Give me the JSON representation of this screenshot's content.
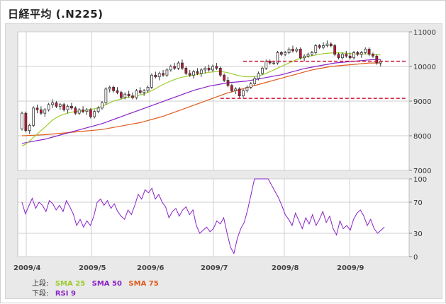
{
  "title": "日経平均 (.N225)",
  "legend": {
    "upper_label": "上段:",
    "lower_label": "下段:",
    "sma25": "SMA 25",
    "sma50": "SMA 50",
    "sma75": "SMA 75",
    "rsi9": "RSI 9"
  },
  "colors": {
    "sma25": "#9ccc2c",
    "sma50": "#8a22c8",
    "sma75": "#e05a1a",
    "rsi": "#8a22c8",
    "up": "#ffffff",
    "down": "#cc1133",
    "support": "#cc1133",
    "grid": "#cfcfcf"
  },
  "chart_data": [
    {
      "type": "candlestick",
      "x_tick_labels": [
        "2009/4",
        "2009/5",
        "2009/6",
        "2009/7",
        "2009/8",
        "2009/9"
      ],
      "y_ticks": [
        7000,
        8000,
        9000,
        10000,
        11000
      ],
      "ylim": [
        7000,
        11000
      ],
      "ohlc": [
        [
          0,
          8200,
          8700,
          8150,
          8650
        ],
        [
          1,
          8650,
          8700,
          8100,
          8150
        ],
        [
          2,
          8150,
          8350,
          8050,
          8300
        ],
        [
          3,
          8300,
          8850,
          8250,
          8800
        ],
        [
          4,
          8800,
          8900,
          8650,
          8750
        ],
        [
          5,
          8750,
          8850,
          8600,
          8650
        ],
        [
          6,
          8650,
          8800,
          8550,
          8750
        ],
        [
          7,
          8750,
          8950,
          8700,
          8900
        ],
        [
          8,
          8900,
          9050,
          8800,
          8950
        ],
        [
          9,
          8950,
          9000,
          8800,
          8850
        ],
        [
          10,
          8850,
          8950,
          8750,
          8900
        ],
        [
          11,
          8900,
          8950,
          8700,
          8750
        ],
        [
          12,
          8750,
          8900,
          8650,
          8850
        ],
        [
          13,
          8850,
          8950,
          8750,
          8800
        ],
        [
          14,
          8800,
          8850,
          8600,
          8650
        ],
        [
          15,
          8650,
          8800,
          8600,
          8750
        ],
        [
          16,
          8750,
          8850,
          8650,
          8700
        ],
        [
          17,
          8700,
          8800,
          8600,
          8750
        ],
        [
          18,
          8750,
          8800,
          8500,
          8550
        ],
        [
          19,
          8550,
          8750,
          8500,
          8700
        ],
        [
          20,
          8700,
          8850,
          8650,
          8800
        ],
        [
          21,
          8800,
          9000,
          8750,
          8950
        ],
        [
          22,
          8950,
          9400,
          8900,
          9350
        ],
        [
          23,
          9350,
          9450,
          9250,
          9400
        ],
        [
          24,
          9400,
          9450,
          9250,
          9300
        ],
        [
          25,
          9300,
          9400,
          9200,
          9250
        ],
        [
          26,
          9250,
          9300,
          9050,
          9100
        ],
        [
          27,
          9100,
          9250,
          9050,
          9200
        ],
        [
          28,
          9200,
          9300,
          9100,
          9150
        ],
        [
          29,
          9150,
          9250,
          9050,
          9100
        ],
        [
          30,
          9100,
          9350,
          9050,
          9300
        ],
        [
          31,
          9300,
          9400,
          9200,
          9250
        ],
        [
          32,
          9250,
          9350,
          9150,
          9300
        ],
        [
          33,
          9300,
          9450,
          9250,
          9400
        ],
        [
          34,
          9400,
          9800,
          9350,
          9750
        ],
        [
          35,
          9750,
          9850,
          9650,
          9700
        ],
        [
          36,
          9700,
          9850,
          9600,
          9800
        ],
        [
          37,
          9800,
          9900,
          9700,
          9750
        ],
        [
          38,
          9750,
          9950,
          9700,
          9900
        ],
        [
          39,
          9900,
          10050,
          9850,
          10000
        ],
        [
          40,
          10000,
          10100,
          9900,
          9950
        ],
        [
          41,
          9950,
          10150,
          9900,
          10100
        ],
        [
          42,
          10100,
          10200,
          9900,
          9950
        ],
        [
          43,
          9950,
          10000,
          9750,
          9800
        ],
        [
          44,
          9800,
          9900,
          9700,
          9750
        ],
        [
          45,
          9750,
          9900,
          9650,
          9850
        ],
        [
          46,
          9850,
          9950,
          9750,
          9800
        ],
        [
          47,
          9800,
          9950,
          9700,
          9900
        ],
        [
          48,
          9900,
          10000,
          9800,
          9950
        ],
        [
          49,
          9950,
          10050,
          9850,
          9900
        ],
        [
          50,
          9900,
          10050,
          9850,
          10000
        ],
        [
          51,
          10000,
          10100,
          9900,
          9950
        ],
        [
          52,
          9950,
          10000,
          9700,
          9750
        ],
        [
          53,
          9750,
          9800,
          9550,
          9600
        ],
        [
          54,
          9600,
          9700,
          9400,
          9450
        ],
        [
          55,
          9450,
          9500,
          9250,
          9300
        ],
        [
          56,
          9300,
          9400,
          9200,
          9350
        ],
        [
          57,
          9350,
          9400,
          9100,
          9150
        ],
        [
          58,
          9150,
          9350,
          9100,
          9300
        ],
        [
          59,
          9300,
          9450,
          9250,
          9400
        ],
        [
          60,
          9400,
          9550,
          9350,
          9500
        ],
        [
          61,
          9500,
          9700,
          9450,
          9650
        ],
        [
          62,
          9650,
          9850,
          9600,
          9800
        ],
        [
          63,
          9800,
          10000,
          9750,
          9950
        ],
        [
          64,
          9950,
          10200,
          9900,
          10150
        ],
        [
          65,
          10150,
          10200,
          10050,
          10100
        ],
        [
          66,
          10100,
          10150,
          10050,
          10100
        ],
        [
          67,
          10100,
          10450,
          10050,
          10400
        ],
        [
          68,
          10400,
          10450,
          10300,
          10350
        ],
        [
          69,
          10350,
          10450,
          10300,
          10400
        ],
        [
          70,
          10400,
          10550,
          10350,
          10500
        ],
        [
          71,
          10500,
          10600,
          10400,
          10450
        ],
        [
          72,
          10450,
          10550,
          10400,
          10500
        ],
        [
          73,
          10500,
          10550,
          10200,
          10250
        ],
        [
          74,
          10250,
          10350,
          10150,
          10300
        ],
        [
          75,
          10300,
          10400,
          10250,
          10350
        ],
        [
          76,
          10350,
          10450,
          10300,
          10400
        ],
        [
          77,
          10400,
          10650,
          10350,
          10600
        ],
        [
          78,
          10600,
          10650,
          10500,
          10550
        ],
        [
          79,
          10550,
          10700,
          10500,
          10600
        ],
        [
          80,
          10600,
          10750,
          10550,
          10650
        ],
        [
          81,
          10650,
          10700,
          10550,
          10600
        ],
        [
          82,
          10600,
          10650,
          10300,
          10350
        ],
        [
          83,
          10350,
          10400,
          10200,
          10250
        ],
        [
          84,
          10250,
          10400,
          10200,
          10350
        ],
        [
          85,
          10350,
          10450,
          10250,
          10300
        ],
        [
          86,
          10300,
          10400,
          10200,
          10250
        ],
        [
          87,
          10250,
          10450,
          10200,
          10400
        ],
        [
          88,
          10400,
          10450,
          10300,
          10350
        ],
        [
          89,
          10350,
          10450,
          10250,
          10400
        ],
        [
          90,
          10400,
          10550,
          10350,
          10500
        ],
        [
          91,
          10500,
          10550,
          10300,
          10350
        ],
        [
          92,
          10350,
          10400,
          10250,
          10300
        ],
        [
          93,
          10300,
          10350,
          10050,
          10100
        ],
        [
          94,
          10100,
          10200,
          10000,
          10150
        ]
      ],
      "sma25": [
        7700,
        7760,
        7850,
        7950,
        8050,
        8150,
        8250,
        8350,
        8450,
        8520,
        8580,
        8620,
        8650,
        8680,
        8700,
        8710,
        8720,
        8740,
        8760,
        8780,
        8810,
        8850,
        8900,
        8950,
        9000,
        9030,
        9060,
        9090,
        9110,
        9130,
        9150,
        9180,
        9210,
        9250,
        9300,
        9360,
        9420,
        9480,
        9530,
        9580,
        9620,
        9660,
        9690,
        9710,
        9730,
        9750,
        9770,
        9790,
        9810,
        9830,
        9840,
        9850,
        9850,
        9840,
        9820,
        9790,
        9760,
        9730,
        9710,
        9700,
        9700,
        9710,
        9730,
        9760,
        9800,
        9850,
        9900,
        9950,
        10000,
        10050,
        10100,
        10150,
        10200,
        10230,
        10260,
        10290,
        10310,
        10330,
        10350,
        10370,
        10380,
        10390,
        10390,
        10390,
        10390,
        10380,
        10370,
        10360,
        10360,
        10360,
        10360,
        10360,
        10350,
        10340,
        10330
      ],
      "sma50": [
        7780,
        7800,
        7820,
        7840,
        7860,
        7880,
        7900,
        7930,
        7960,
        7990,
        8020,
        8050,
        8080,
        8110,
        8140,
        8170,
        8200,
        8230,
        8260,
        8290,
        8320,
        8350,
        8390,
        8430,
        8470,
        8510,
        8550,
        8590,
        8630,
        8670,
        8710,
        8750,
        8790,
        8830,
        8870,
        8910,
        8950,
        8990,
        9030,
        9070,
        9110,
        9150,
        9190,
        9230,
        9270,
        9310,
        9340,
        9370,
        9400,
        9430,
        9450,
        9470,
        9490,
        9510,
        9530,
        9540,
        9550,
        9560,
        9570,
        9580,
        9600,
        9620,
        9640,
        9660,
        9680,
        9700,
        9720,
        9740,
        9760,
        9790,
        9820,
        9850,
        9880,
        9910,
        9940,
        9960,
        9980,
        10000,
        10020,
        10040,
        10060,
        10080,
        10100,
        10110,
        10120,
        10130,
        10140,
        10150,
        10160,
        10170,
        10180,
        10190,
        10195,
        10200,
        10200
      ],
      "sma75": [
        8000,
        8005,
        8010,
        8015,
        8020,
        8025,
        8030,
        8040,
        8050,
        8060,
        8070,
        8080,
        8090,
        8100,
        8110,
        8120,
        8130,
        8140,
        8150,
        8160,
        8170,
        8180,
        8200,
        8220,
        8240,
        8260,
        8280,
        8300,
        8320,
        8340,
        8360,
        8380,
        8410,
        8440,
        8470,
        8500,
        8530,
        8560,
        8600,
        8640,
        8680,
        8720,
        8760,
        8800,
        8840,
        8880,
        8920,
        8960,
        9000,
        9040,
        9080,
        9120,
        9160,
        9200,
        9240,
        9270,
        9300,
        9330,
        9360,
        9390,
        9420,
        9450,
        9480,
        9510,
        9540,
        9570,
        9600,
        9630,
        9660,
        9690,
        9720,
        9750,
        9780,
        9810,
        9840,
        9870,
        9900,
        9920,
        9940,
        9960,
        9980,
        10000,
        10010,
        10020,
        10030,
        10040,
        10050,
        10060,
        10070,
        10080,
        10090,
        10100,
        10100,
        10100,
        10100
      ],
      "support_levels": [
        {
          "value": 10150,
          "from_index": 58,
          "to_index": 100
        },
        {
          "value": 9080,
          "from_index": 52,
          "to_index": 100
        }
      ]
    },
    {
      "type": "line",
      "name": "RSI 9",
      "y_ticks": [
        0,
        30,
        70,
        100
      ],
      "ylim": [
        0,
        100
      ],
      "values": [
        70,
        55,
        65,
        75,
        62,
        70,
        66,
        58,
        72,
        68,
        60,
        66,
        58,
        72,
        64,
        55,
        40,
        48,
        38,
        46,
        40,
        52,
        70,
        74,
        66,
        72,
        62,
        68,
        58,
        52,
        48,
        60,
        54,
        66,
        80,
        74,
        86,
        82,
        88,
        74,
        80,
        70,
        64,
        50,
        58,
        62,
        52,
        60,
        64,
        54,
        60,
        40,
        30,
        34,
        38,
        32,
        36,
        46,
        42,
        50,
        30,
        12,
        4,
        24,
        36,
        44,
        60,
        80,
        100,
        100,
        100,
        100,
        100,
        92,
        84,
        76,
        66,
        54,
        48,
        40,
        56,
        46,
        36,
        50,
        42,
        54,
        40,
        48,
        58,
        44,
        52,
        36,
        28,
        46,
        36,
        40,
        34,
        48,
        56,
        60,
        52,
        40,
        48,
        36,
        30,
        34,
        38
      ]
    }
  ]
}
